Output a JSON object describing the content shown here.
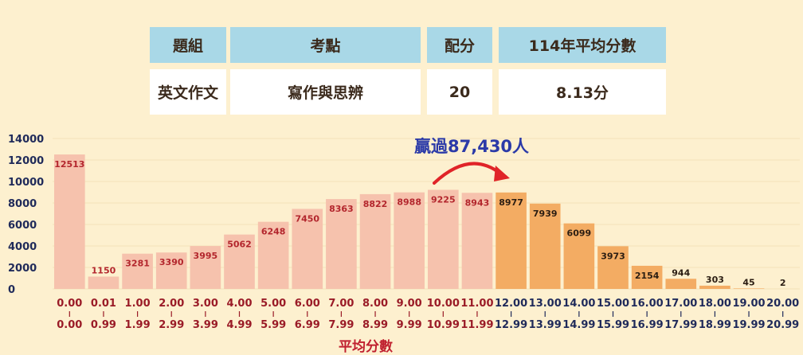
{
  "info_table": {
    "headers": [
      "題組",
      "考點",
      "配分",
      "114年平均分數"
    ],
    "values": [
      "英文作文",
      "寫作與思辨",
      "20",
      "8.13分"
    ]
  },
  "callout": {
    "text": "贏過87,430人",
    "arrow_color": "#e02428"
  },
  "colors": {
    "below_fill": "#f6c2ad",
    "above_fill": "#f3ac63",
    "ytick": "#1f2a5a",
    "xtick": "#9a1b27",
    "value_below": "#b3262d",
    "value_above": "#2b1d12"
  },
  "chart_data": {
    "type": "bar",
    "title": "",
    "xlabel": "平均分數",
    "ylabel": "",
    "ylim": [
      0,
      14000
    ],
    "yticks": [
      0,
      2000,
      4000,
      6000,
      8000,
      10000,
      12000,
      14000
    ],
    "grid": true,
    "categories": [
      {
        "lower": "0.00",
        "upper": "0.00"
      },
      {
        "lower": "0.01",
        "upper": "0.99"
      },
      {
        "lower": "1.00",
        "upper": "1.99"
      },
      {
        "lower": "2.00",
        "upper": "2.99"
      },
      {
        "lower": "3.00",
        "upper": "3.99"
      },
      {
        "lower": "4.00",
        "upper": "4.99"
      },
      {
        "lower": "5.00",
        "upper": "5.99"
      },
      {
        "lower": "6.00",
        "upper": "6.99"
      },
      {
        "lower": "7.00",
        "upper": "7.99"
      },
      {
        "lower": "8.00",
        "upper": "8.99"
      },
      {
        "lower": "9.00",
        "upper": "9.99"
      },
      {
        "lower": "10.00",
        "upper": "10.99"
      },
      {
        "lower": "11.00",
        "upper": "11.99"
      },
      {
        "lower": "12.00",
        "upper": "12.99"
      },
      {
        "lower": "13.00",
        "upper": "13.99"
      },
      {
        "lower": "14.00",
        "upper": "14.99"
      },
      {
        "lower": "15.00",
        "upper": "15.99"
      },
      {
        "lower": "16.00",
        "upper": "16.99"
      },
      {
        "lower": "17.00",
        "upper": "17.99"
      },
      {
        "lower": "18.00",
        "upper": "18.99"
      },
      {
        "lower": "19.00",
        "upper": "19.99"
      },
      {
        "lower": "20.00",
        "upper": "20.99"
      }
    ],
    "values": [
      12513,
      1150,
      3281,
      3390,
      3995,
      5062,
      6248,
      7450,
      8363,
      8822,
      8988,
      9225,
      8943,
      8977,
      7939,
      6099,
      3973,
      2154,
      944,
      303,
      45,
      2
    ],
    "highlight_from_index": 13
  }
}
